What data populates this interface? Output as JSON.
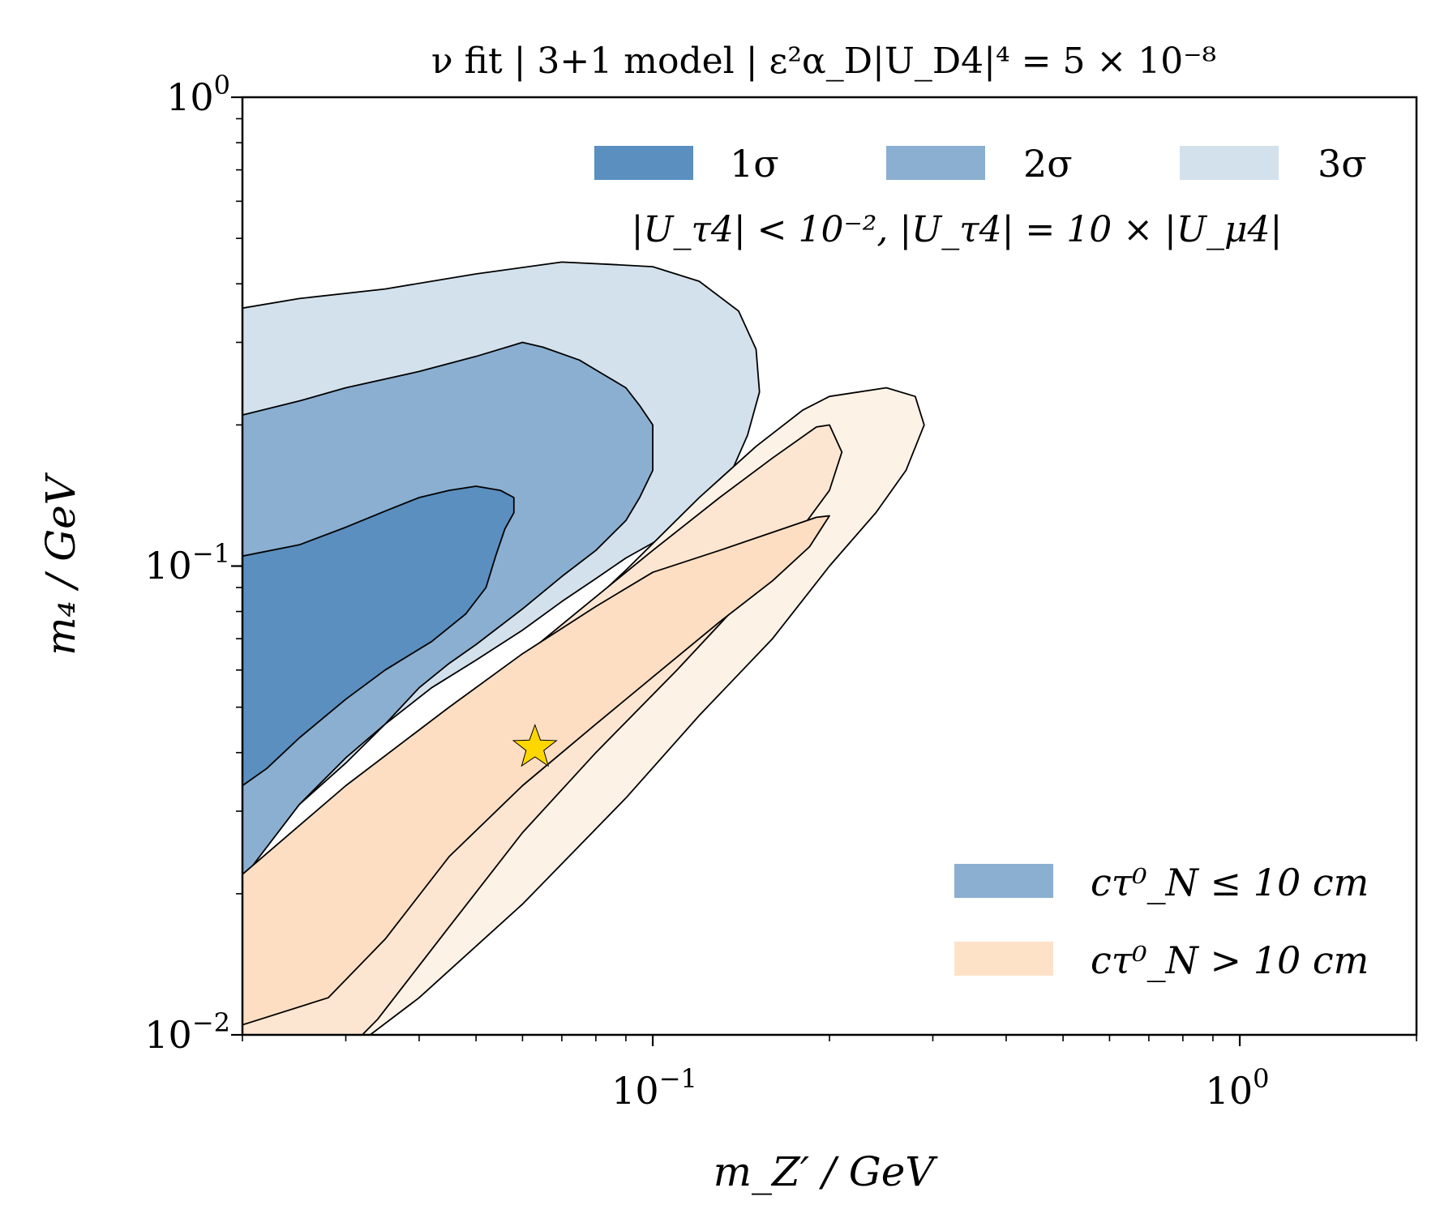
{
  "chart_data": {
    "type": "area",
    "title": "ν fit | 3+1 model | ε²α_D|U_D4|⁴ = 5 × 10⁻⁸",
    "xlabel": "m_Z′ / GeV",
    "ylabel": "m₄ / GeV",
    "xscale": "log",
    "yscale": "log",
    "xlim": [
      0.02,
      2.0
    ],
    "ylim": [
      0.01,
      1.0
    ],
    "grid": false,
    "x_ticks": [
      {
        "value": 0.1,
        "label": "10",
        "exp": "−1"
      },
      {
        "value": 1.0,
        "label": "10",
        "exp": "0"
      }
    ],
    "y_ticks": [
      {
        "value": 0.01,
        "label": "10",
        "exp": "−2"
      },
      {
        "value": 0.1,
        "label": "10",
        "exp": "−1"
      },
      {
        "value": 1.0,
        "label": "10",
        "exp": "0"
      }
    ],
    "legend_sigma": {
      "placement": "top",
      "entries": [
        {
          "label": "1σ",
          "color": "#5a8fbf"
        },
        {
          "label": "2σ",
          "color": "#8aafd1"
        },
        {
          "label": "3σ",
          "color": "#d3e1ec"
        }
      ],
      "subtitle": "|U_τ4| < 10⁻²,   |U_τ4| = 10 × |U_μ4|"
    },
    "legend_lifetime": {
      "placement": "bottom-right",
      "entries": [
        {
          "label": "cτ⁰_N ≤ 10 cm",
          "color": "#8aafd1"
        },
        {
          "label": "cτ⁰_N > 10 cm",
          "color": "#fde2c8"
        }
      ]
    },
    "best_fit": {
      "x": 0.063,
      "y": 0.041,
      "marker": "star",
      "color": "#ffd700"
    },
    "regions": [
      {
        "name": "3σ short lifetime",
        "color": "#d3e1ec",
        "points": [
          [
            0.02,
            0.355
          ],
          [
            0.025,
            0.372
          ],
          [
            0.035,
            0.39
          ],
          [
            0.05,
            0.42
          ],
          [
            0.07,
            0.445
          ],
          [
            0.085,
            0.44
          ],
          [
            0.1,
            0.435
          ],
          [
            0.12,
            0.405
          ],
          [
            0.14,
            0.35
          ],
          [
            0.15,
            0.29
          ],
          [
            0.152,
            0.235
          ],
          [
            0.145,
            0.19
          ],
          [
            0.135,
            0.155
          ],
          [
            0.12,
            0.13
          ],
          [
            0.1,
            0.112
          ],
          [
            0.09,
            0.104
          ],
          [
            0.08,
            0.094
          ],
          [
            0.07,
            0.084
          ],
          [
            0.06,
            0.073
          ],
          [
            0.05,
            0.063
          ],
          [
            0.042,
            0.055
          ],
          [
            0.035,
            0.046
          ],
          [
            0.03,
            0.038
          ],
          [
            0.025,
            0.031
          ],
          [
            0.02,
            0.0245
          ]
        ]
      },
      {
        "name": "2σ short lifetime",
        "color": "#8aafd1",
        "points": [
          [
            0.02,
            0.21
          ],
          [
            0.025,
            0.225
          ],
          [
            0.03,
            0.24
          ],
          [
            0.04,
            0.26
          ],
          [
            0.05,
            0.28
          ],
          [
            0.06,
            0.3
          ],
          [
            0.065,
            0.293
          ],
          [
            0.075,
            0.275
          ],
          [
            0.08,
            0.262
          ],
          [
            0.09,
            0.24
          ],
          [
            0.095,
            0.22
          ],
          [
            0.1,
            0.2
          ],
          [
            0.1,
            0.18
          ],
          [
            0.1,
            0.16
          ],
          [
            0.095,
            0.14
          ],
          [
            0.09,
            0.125
          ],
          [
            0.08,
            0.108
          ],
          [
            0.07,
            0.095
          ],
          [
            0.06,
            0.081
          ],
          [
            0.05,
            0.068
          ],
          [
            0.045,
            0.062
          ],
          [
            0.04,
            0.055
          ],
          [
            0.035,
            0.046
          ],
          [
            0.03,
            0.039
          ],
          [
            0.025,
            0.031
          ],
          [
            0.02,
            0.0215
          ]
        ]
      },
      {
        "name": "1σ short lifetime",
        "color": "#5a8fbf",
        "points": [
          [
            0.02,
            0.105
          ],
          [
            0.025,
            0.111
          ],
          [
            0.03,
            0.121
          ],
          [
            0.035,
            0.131
          ],
          [
            0.04,
            0.14
          ],
          [
            0.045,
            0.145
          ],
          [
            0.05,
            0.148
          ],
          [
            0.055,
            0.145
          ],
          [
            0.058,
            0.14
          ],
          [
            0.058,
            0.13
          ],
          [
            0.056,
            0.12
          ],
          [
            0.054,
            0.105
          ],
          [
            0.052,
            0.09
          ],
          [
            0.048,
            0.079
          ],
          [
            0.042,
            0.069
          ],
          [
            0.035,
            0.06
          ],
          [
            0.03,
            0.052
          ],
          [
            0.025,
            0.043
          ],
          [
            0.022,
            0.037
          ],
          [
            0.02,
            0.034
          ]
        ]
      },
      {
        "name": "3σ long lifetime",
        "color": "#fdf2e6",
        "points": [
          [
            0.2,
            0.23
          ],
          [
            0.25,
            0.24
          ],
          [
            0.28,
            0.23
          ],
          [
            0.29,
            0.2
          ],
          [
            0.27,
            0.16
          ],
          [
            0.24,
            0.13
          ],
          [
            0.2,
            0.1
          ],
          [
            0.16,
            0.07
          ],
          [
            0.12,
            0.048
          ],
          [
            0.09,
            0.032
          ],
          [
            0.06,
            0.019
          ],
          [
            0.04,
            0.012
          ],
          [
            0.033,
            0.01
          ],
          [
            0.02,
            0.01
          ],
          [
            0.02,
            0.02
          ],
          [
            0.025,
            0.026
          ],
          [
            0.035,
            0.037
          ],
          [
            0.05,
            0.052
          ],
          [
            0.07,
            0.073
          ],
          [
            0.09,
            0.098
          ],
          [
            0.12,
            0.14
          ],
          [
            0.15,
            0.18
          ],
          [
            0.18,
            0.215
          ]
        ]
      },
      {
        "name": "2σ long lifetime",
        "color": "#fde6d1",
        "points": [
          [
            0.2,
            0.2
          ],
          [
            0.21,
            0.175
          ],
          [
            0.2,
            0.145
          ],
          [
            0.17,
            0.11
          ],
          [
            0.14,
            0.083
          ],
          [
            0.11,
            0.06
          ],
          [
            0.08,
            0.04
          ],
          [
            0.06,
            0.027
          ],
          [
            0.045,
            0.017
          ],
          [
            0.034,
            0.0108
          ],
          [
            0.032,
            0.01
          ],
          [
            0.02,
            0.01
          ],
          [
            0.02,
            0.021
          ],
          [
            0.03,
            0.032
          ],
          [
            0.045,
            0.048
          ],
          [
            0.06,
            0.064
          ],
          [
            0.08,
            0.086
          ],
          [
            0.1,
            0.108
          ],
          [
            0.13,
            0.14
          ],
          [
            0.16,
            0.17
          ],
          [
            0.19,
            0.198
          ]
        ]
      },
      {
        "name": "1σ long lifetime",
        "color": "#fddec2",
        "points": [
          [
            0.2,
            0.128
          ],
          [
            0.185,
            0.11
          ],
          [
            0.16,
            0.093
          ],
          [
            0.13,
            0.076
          ],
          [
            0.1,
            0.058
          ],
          [
            0.08,
            0.046
          ],
          [
            0.06,
            0.034
          ],
          [
            0.045,
            0.024
          ],
          [
            0.035,
            0.016
          ],
          [
            0.028,
            0.012
          ],
          [
            0.02,
            0.0105
          ],
          [
            0.02,
            0.022
          ],
          [
            0.03,
            0.034
          ],
          [
            0.045,
            0.05
          ],
          [
            0.06,
            0.065
          ],
          [
            0.08,
            0.082
          ],
          [
            0.1,
            0.097
          ],
          [
            0.13,
            0.108
          ],
          [
            0.16,
            0.118
          ],
          [
            0.19,
            0.127
          ]
        ]
      }
    ]
  }
}
